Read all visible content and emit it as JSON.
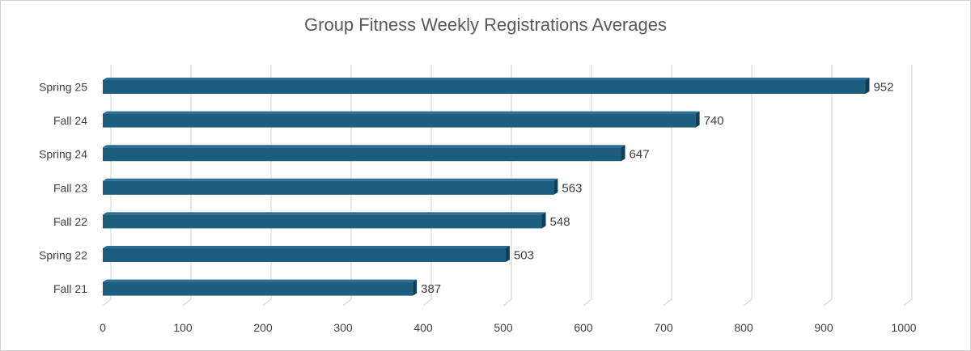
{
  "chart_data": {
    "type": "bar",
    "orientation": "horizontal",
    "title": "Group Fitness Weekly Registrations Averages",
    "categories": [
      "Spring 25",
      "Fall 24",
      "Spring 24",
      "Fall 23",
      "Fall 22",
      "Spring 22",
      "Fall 21"
    ],
    "values": [
      952,
      740,
      647,
      563,
      548,
      503,
      387
    ],
    "xlim": [
      0,
      1000
    ],
    "x_ticks": [
      "0",
      "100",
      "200",
      "300",
      "400",
      "500",
      "600",
      "700",
      "800",
      "900",
      "1000"
    ],
    "grid": true,
    "data_labels": true,
    "colors": {
      "bar": "#1d5e7e",
      "bar_top": "#2a6f91",
      "bar_side": "#123f55",
      "grid": "#d9d9d9"
    }
  }
}
